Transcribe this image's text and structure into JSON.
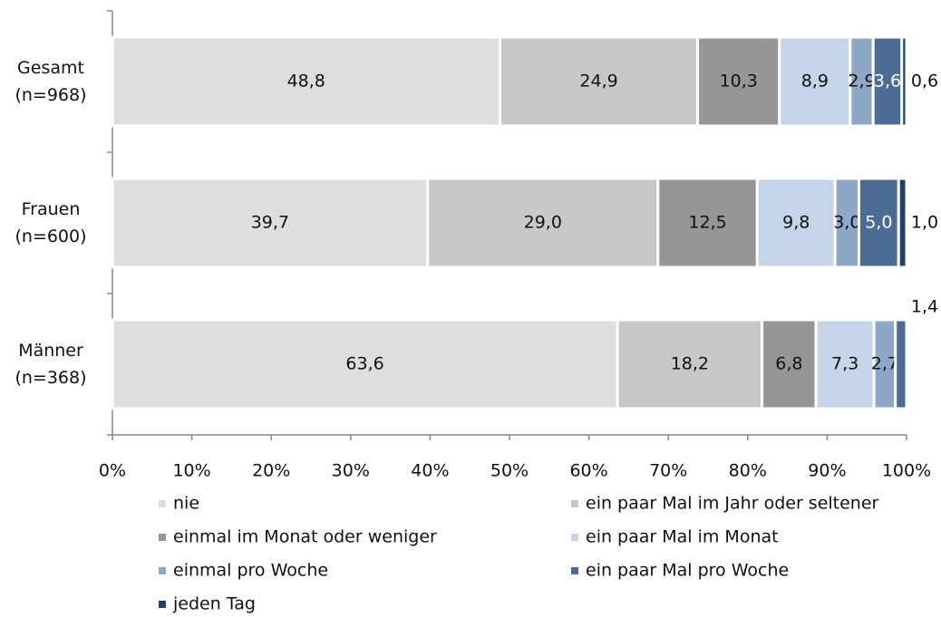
{
  "chart_data": {
    "type": "stacked-bar-horizontal",
    "categories": [
      "Gesamt (n=968)",
      "Frauen (n=600)",
      "Männer (n=368)"
    ],
    "series": [
      {
        "name": "nie",
        "color": "#dedede",
        "values": [
          48.8,
          39.7,
          63.6
        ],
        "value_labels": [
          "48,8",
          "39,7",
          "63,6"
        ]
      },
      {
        "name": "ein paar Mal im Jahr oder seltener",
        "color": "#c8c8c8",
        "values": [
          24.9,
          29.0,
          18.2
        ],
        "value_labels": [
          "24,9",
          "29,0",
          "18,2"
        ]
      },
      {
        "name": "einmal im Monat oder weniger",
        "color": "#969696",
        "values": [
          10.3,
          12.5,
          6.8
        ],
        "value_labels": [
          "10,3",
          "12,5",
          "6,8"
        ]
      },
      {
        "name": "ein paar Mal im Monat",
        "color": "#c5d4e8",
        "values": [
          8.9,
          9.8,
          7.3
        ],
        "value_labels": [
          "8,9",
          "9,8",
          "7,3"
        ]
      },
      {
        "name": "einmal pro Woche",
        "color": "#8ea6c8",
        "values": [
          2.9,
          3.0,
          2.7
        ],
        "value_labels": [
          "2,9",
          "3,0",
          "2,7"
        ]
      },
      {
        "name": "ein paar Mal pro Woche",
        "color": "#4a6c95",
        "values": [
          3.6,
          5.0,
          1.4
        ],
        "value_labels": [
          "3,6",
          "5,0",
          "1,4"
        ]
      },
      {
        "name": "jeden Tag",
        "color": "#1f3f72",
        "values": [
          0.6,
          1.0,
          null
        ],
        "value_labels": [
          "0,6",
          "1,0",
          null
        ]
      }
    ],
    "xlim": [
      0,
      100
    ],
    "xticks": [
      {
        "value": 0,
        "label": "0%"
      },
      {
        "value": 10,
        "label": "10%"
      },
      {
        "value": 20,
        "label": "20%"
      },
      {
        "value": 30,
        "label": "30%"
      },
      {
        "value": 40,
        "label": "40%"
      },
      {
        "value": 50,
        "label": "50%"
      },
      {
        "value": 60,
        "label": "60%"
      },
      {
        "value": 70,
        "label": "70%"
      },
      {
        "value": 80,
        "label": "80%"
      },
      {
        "value": 90,
        "label": "90%"
      },
      {
        "value": 100,
        "label": "100%"
      }
    ],
    "legend": "bottom"
  }
}
